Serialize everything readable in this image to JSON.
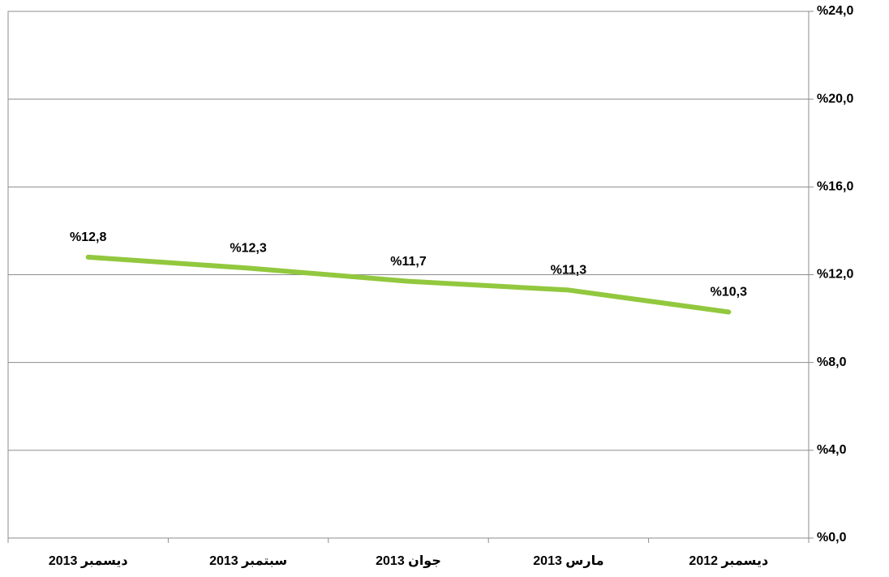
{
  "chart_data": {
    "type": "line",
    "categories": [
      "ديسمبر 2013",
      "سبتمبر 2013",
      "جوان 2013",
      "مارس 2013",
      "ديسمبر 2012"
    ],
    "values": [
      12.8,
      12.3,
      11.7,
      11.3,
      10.3
    ],
    "value_labels": [
      "%12,8",
      "%12,3",
      "%11,7",
      "%11,3",
      "%10,3"
    ],
    "color": "#92c83e",
    "ylim": [
      0,
      24
    ],
    "yticks": [
      {
        "value": 0,
        "label": "%0,0"
      },
      {
        "value": 4,
        "label": "%4,0"
      },
      {
        "value": 8,
        "label": "%8,0"
      },
      {
        "value": 12,
        "label": "%12,0"
      },
      {
        "value": 16,
        "label": "%16,0"
      },
      {
        "value": 20,
        "label": "%20,0"
      },
      {
        "value": 24,
        "label": "%24,0"
      }
    ],
    "grid": true
  }
}
